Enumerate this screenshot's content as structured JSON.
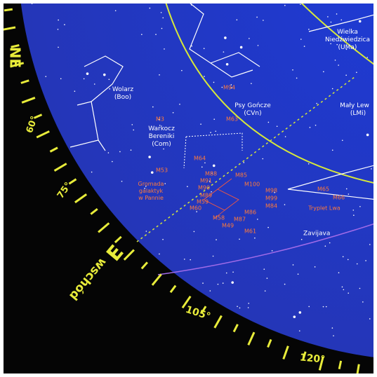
{
  "compass": {
    "ne": "NE",
    "e": "E",
    "east_word": "wschód",
    "degrees": [
      "60°",
      "75°",
      "105°",
      "120°"
    ]
  },
  "constellations": [
    {
      "lines": [
        "Wolarz",
        "(Boo)"
      ]
    },
    {
      "lines": [
        "Psy Gończe",
        "(CVn)"
      ]
    },
    {
      "lines": [
        "Warkocz",
        "Bereniki",
        "(Com)"
      ]
    },
    {
      "lines": [
        "Mały Lew",
        "(LMi)"
      ]
    },
    {
      "lines": [
        "Wielka",
        "Niedźwiedzica",
        "(UMa)"
      ]
    }
  ],
  "clusters": [
    {
      "lines": [
        "Gromada",
        "galaktyk",
        "w Pannie"
      ]
    },
    {
      "lines": [
        "Tryplet Lwa"
      ]
    }
  ],
  "objects": [
    "M3",
    "M53",
    "M64",
    "M94",
    "M63",
    "M85",
    "M88",
    "M91",
    "M90",
    "M89",
    "M59",
    "M60",
    "M100",
    "M98",
    "M99",
    "M84",
    "M86",
    "M87",
    "M58",
    "M49",
    "M61",
    "M65",
    "M66"
  ],
  "stars": [
    "Zavijava"
  ]
}
